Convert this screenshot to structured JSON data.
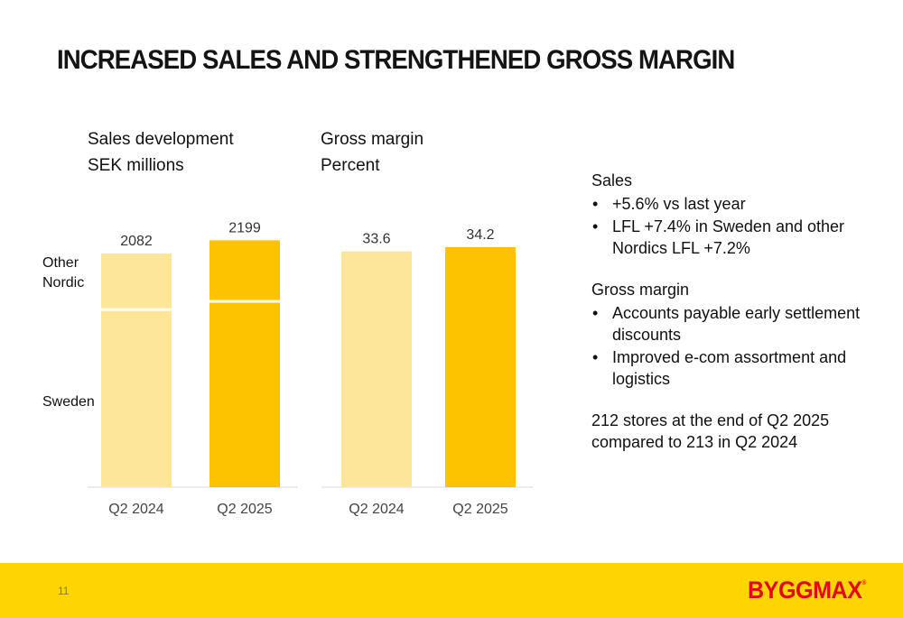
{
  "slide": {
    "title": "INCREASED SALES AND STRENGTHENED GROSS MARGIN",
    "page_number": "11",
    "logo_text": "BYGGMAX",
    "logo_mark": "®"
  },
  "colors": {
    "light_bar": "#fde69a",
    "dark_bar": "#fdc300",
    "footer": "#ffd500",
    "logo": "#e30613"
  },
  "chart_data": [
    {
      "type": "bar",
      "stacked": true,
      "title": "Sales development",
      "subtitle": "SEK millions",
      "categories": [
        "Q2 2024",
        "Q2 2025"
      ],
      "totals": [
        2082,
        2199
      ],
      "series": [
        {
          "name": "Sweden",
          "values": [
            1570,
            1643
          ]
        },
        {
          "name": "Other Nordic",
          "values": [
            512,
            556
          ]
        }
      ],
      "series_labels": [
        "Other Nordic",
        "Sweden"
      ],
      "ylim": [
        0,
        2250
      ],
      "grid": false,
      "legend": "left"
    },
    {
      "type": "bar",
      "title": "Gross margin",
      "subtitle": "Percent",
      "categories": [
        "Q2 2024",
        "Q2 2025"
      ],
      "values": [
        33.6,
        34.2
      ],
      "value_labels": [
        "33.6",
        "34.2"
      ],
      "ylim": [
        0,
        36.0
      ],
      "grid": false
    }
  ],
  "commentary": {
    "sales_heading": "Sales",
    "sales_points": [
      "+5.6% vs last year",
      "LFL +7.4% in Sweden and other Nordics LFL +7.2%"
    ],
    "margin_heading": "Gross margin",
    "margin_points": [
      "Accounts payable early settlement discounts",
      "Improved e-com assortment and logistics"
    ],
    "stores_note": "212 stores at the end of Q2 2025 compared to 213 in Q2 2024",
    "bullet": "•"
  }
}
